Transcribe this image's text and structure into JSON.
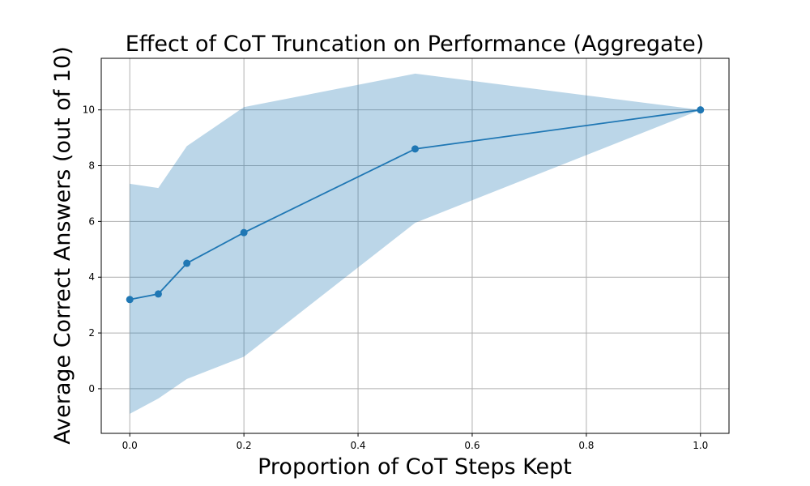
{
  "chart_data": {
    "type": "line",
    "title": "Effect of CoT Truncation on Performance (Aggregate)",
    "xlabel": "Proportion of CoT Steps Kept",
    "ylabel": "Average Correct Answers (out of 10)",
    "xlim": [
      -0.05,
      1.05
    ],
    "ylim": [
      -1.6,
      11.85
    ],
    "xticks": [
      0.0,
      0.2,
      0.4,
      0.6,
      0.8,
      1.0
    ],
    "xtick_labels": [
      "0.0",
      "0.2",
      "0.4",
      "0.6",
      "0.8",
      "1.0"
    ],
    "yticks": [
      0,
      2,
      4,
      6,
      8,
      10
    ],
    "ytick_labels": [
      "0",
      "2",
      "4",
      "6",
      "8",
      "10"
    ],
    "grid": true,
    "series": [
      {
        "x": [
          0.0,
          0.05,
          0.1,
          0.2,
          0.5,
          1.0
        ],
        "values": [
          3.2,
          3.4,
          4.5,
          5.6,
          8.6,
          10.0
        ],
        "band_upper": [
          7.35,
          7.2,
          8.7,
          10.1,
          11.3,
          10.0
        ],
        "band_lower": [
          -0.9,
          -0.35,
          0.35,
          1.15,
          5.95,
          10.0
        ],
        "color": "#1f77b4",
        "band_color": "#1f77b4",
        "marker": "circle"
      }
    ]
  }
}
